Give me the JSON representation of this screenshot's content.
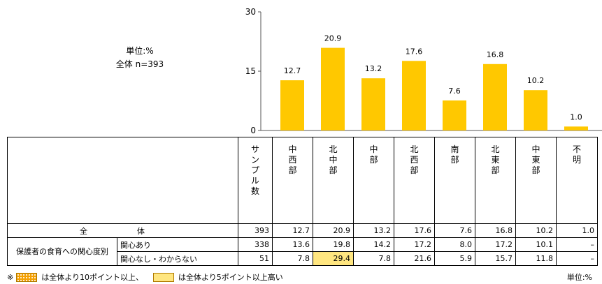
{
  "chart_data": {
    "type": "bar",
    "categories": [
      "中西部",
      "北中部",
      "中部",
      "北西部",
      "南部",
      "北東部",
      "中東部",
      "不明"
    ],
    "values": [
      12.7,
      20.9,
      13.2,
      17.6,
      7.6,
      16.8,
      10.2,
      1.0
    ],
    "value_labels": [
      "12.7",
      "20.9",
      "13.2",
      "17.6",
      "7.6",
      "16.8",
      "10.2",
      "1.0"
    ],
    "ylim": [
      0,
      30
    ],
    "yticks": [
      "0",
      "15",
      "30"
    ],
    "bar_color": "#ffc800",
    "unit_label": "単位:%",
    "total_label": "全体 n=393"
  },
  "table": {
    "sample_header": "サンプル数",
    "columns": [
      "中西部",
      "北中部",
      "中部",
      "北西部",
      "南部",
      "北東部",
      "中東部",
      "不明"
    ],
    "total_row": {
      "label": "全　体",
      "n": "393",
      "values": [
        "12.7",
        "20.9",
        "13.2",
        "17.6",
        "7.6",
        "16.8",
        "10.2",
        "1.0"
      ]
    },
    "group_label": "保護者の食育への関心度別",
    "rows": [
      {
        "label": "関心あり",
        "n": "338",
        "values": [
          "13.6",
          "19.8",
          "14.2",
          "17.2",
          "8.0",
          "17.2",
          "10.1",
          "–"
        ]
      },
      {
        "label": "関心なし・わからない",
        "n": "51",
        "values": [
          "7.8",
          "29.4",
          "7.8",
          "21.6",
          "5.9",
          "15.7",
          "11.8",
          "–"
        ]
      }
    ],
    "highlighted_cell": {
      "row": 1,
      "col": 1,
      "color": "#ffe680"
    }
  },
  "legend": {
    "prefix": "※",
    "orange_text": "は全体より10ポイント以上、",
    "yellow_text": "は全体より5ポイント以上高い",
    "orange_color": "#f5a000",
    "yellow_color": "#ffe680"
  },
  "unit_bottom": "単位:%"
}
